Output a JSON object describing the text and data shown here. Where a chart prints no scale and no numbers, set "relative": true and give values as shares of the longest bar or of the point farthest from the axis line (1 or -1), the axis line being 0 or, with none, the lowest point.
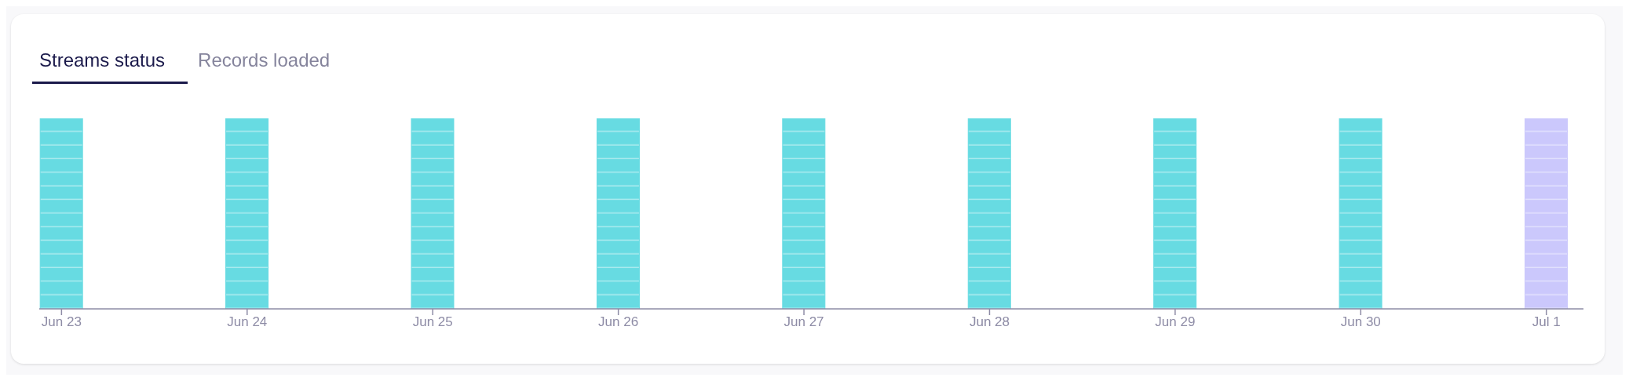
{
  "chart_data": {
    "type": "bar",
    "title": "Streams status",
    "annotations": [
      "Records loaded"
    ],
    "relative": true,
    "grid": false,
    "legend": false,
    "categories": [
      "Jun 23",
      "Jun 24",
      "Jun 25",
      "Jun 26",
      "Jun 27",
      "Jun 28",
      "Jun 29",
      "Jun 30",
      "Jul 1"
    ],
    "colors": [
      "#67dbe2",
      "#67dbe2",
      "#67dbe2",
      "#67dbe2",
      "#67dbe2",
      "#67dbe2",
      "#67dbe2",
      "#67dbe2",
      "#cbc8fc"
    ],
    "values": [
      1,
      1,
      1,
      1,
      1,
      1,
      1,
      1,
      1
    ]
  }
}
